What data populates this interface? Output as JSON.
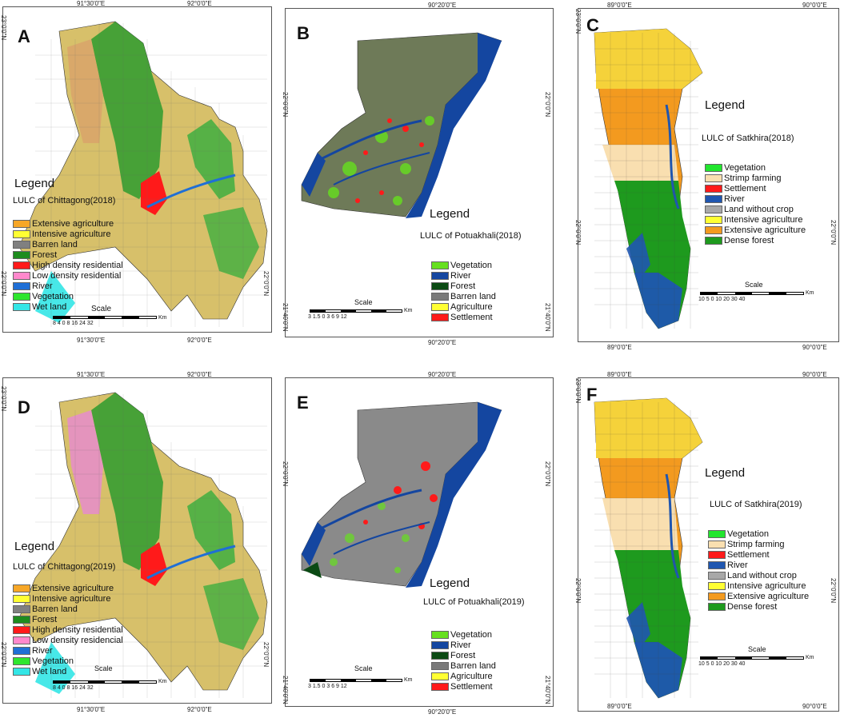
{
  "panels": {
    "A": {
      "letter": "A",
      "legend_title": "Legend",
      "subtitle": "LULC of Chittagong(2018)",
      "classes": [
        {
          "label": "Extensive agriculture",
          "color": "#f7a727"
        },
        {
          "label": "Intensive agriculture",
          "color": "#ffff33"
        },
        {
          "label": "Barren land",
          "color": "#808080"
        },
        {
          "label": "Forest",
          "color": "#1e8c1e"
        },
        {
          "label": "High density residential",
          "color": "#ff1a1a"
        },
        {
          "label": "Low density residential",
          "color": "#ff88cc"
        },
        {
          "label": "River",
          "color": "#1f6fd6"
        },
        {
          "label": "Vegetation",
          "color": "#2ee62e"
        },
        {
          "label": "Wet land",
          "color": "#33e6e6"
        }
      ],
      "scale_label": "Scale",
      "scale_ticks": "8  4  0       8      16     24     32",
      "scale_unit": "Km",
      "top_lon": [
        "91°30'0\"E",
        "92°0'0\"E"
      ],
      "bottom_lon": [
        "91°30'0\"E",
        "92°0'0\"E"
      ],
      "left_lat": [
        "23°0'0\"N",
        "22°0'0\"N"
      ],
      "right_lat": [
        "22°0'0\"N"
      ]
    },
    "B": {
      "letter": "B",
      "legend_title": "Legend",
      "subtitle": "LULC of Potuakhali(2018)",
      "classes": [
        {
          "label": "Vegetation",
          "color": "#66e01e"
        },
        {
          "label": "River",
          "color": "#1446a0"
        },
        {
          "label": "Forest",
          "color": "#0b4a14"
        },
        {
          "label": "Barren land",
          "color": "#7a7a7a"
        },
        {
          "label": "Agriculture",
          "color": "#ffff33"
        },
        {
          "label": "Settlement",
          "color": "#ff1a1a"
        }
      ],
      "scale_label": "Scale",
      "scale_ticks": "3  1.5  0       3       6       9      12",
      "scale_unit": "Km",
      "top_lon": [
        "90°20'0\"E"
      ],
      "bottom_lon": [
        "90°20'0\"E"
      ],
      "left_lat": [
        "22°0'0\"N",
        "21°40'0\"N"
      ],
      "right_lat": [
        "22°0'0\"N",
        "21°40'0\"N"
      ]
    },
    "C": {
      "letter": "C",
      "legend_title": "Legend",
      "subtitle": "LULC of Satkhira(2018)",
      "classes": [
        {
          "label": "Vegetation",
          "color": "#22e62e"
        },
        {
          "label": "Strimp farming",
          "color": "#f9dfb0"
        },
        {
          "label": "Settlement",
          "color": "#ff1a1a"
        },
        {
          "label": "River",
          "color": "#1f56b0"
        },
        {
          "label": "Land without crop",
          "color": "#a8a8a8"
        },
        {
          "label": "Intensive agriculture",
          "color": "#ffff33"
        },
        {
          "label": "Extensive agriculture",
          "color": "#f39a1f"
        },
        {
          "label": "Dense forest",
          "color": "#1e9a1e"
        }
      ],
      "scale_label": "Scale",
      "scale_ticks": "10  5   0       10      20      30      40",
      "scale_unit": "Km",
      "top_lon": [
        "89°0'0\"E",
        "90°0'0\"E"
      ],
      "bottom_lon": [
        "89°0'0\"E",
        "90°0'0\"E"
      ],
      "left_lat": [
        "23°0'0\"N",
        "22°0'0\"N"
      ],
      "right_lat": [
        "22°0'0\"N"
      ]
    },
    "D": {
      "letter": "D",
      "legend_title": "Legend",
      "subtitle": "LULC of Chittagong(2019)",
      "classes": [
        {
          "label": "Extensive agriculture",
          "color": "#f7a727"
        },
        {
          "label": "Intensive agriculture",
          "color": "#ffff33"
        },
        {
          "label": "Barren land",
          "color": "#808080"
        },
        {
          "label": "Forest",
          "color": "#1e8c1e"
        },
        {
          "label": "High density residential",
          "color": "#ff1a1a"
        },
        {
          "label": "Low density residencial",
          "color": "#ff88cc"
        },
        {
          "label": "River",
          "color": "#1f6fd6"
        },
        {
          "label": "Vegetation",
          "color": "#2ee62e"
        },
        {
          "label": "Wet land",
          "color": "#33e6e6"
        }
      ],
      "scale_label": "Scale",
      "scale_ticks": "8  4  0       8      16     24     32",
      "scale_unit": "Km",
      "top_lon": [
        "91°30'0\"E",
        "92°0'0\"E"
      ],
      "bottom_lon": [
        "91°30'0\"E",
        "92°0'0\"E"
      ],
      "left_lat": [
        "23°0'0\"N",
        "22°0'0\"N"
      ],
      "right_lat": [
        "22°0'0\"N"
      ]
    },
    "E": {
      "letter": "E",
      "legend_title": "Legend",
      "subtitle": "LULC of Potuakhali(2019)",
      "classes": [
        {
          "label": "Vegetation",
          "color": "#66e01e"
        },
        {
          "label": "River",
          "color": "#1446a0"
        },
        {
          "label": "Forest",
          "color": "#0b4a14"
        },
        {
          "label": "Barren land",
          "color": "#7a7a7a"
        },
        {
          "label": "Agriculture",
          "color": "#ffff33"
        },
        {
          "label": "Settlement",
          "color": "#ff1a1a"
        }
      ],
      "scale_label": "Scale",
      "scale_ticks": "3  1.5  0       3       6       9      12",
      "scale_unit": "Km",
      "top_lon": [
        "90°20'0\"E"
      ],
      "bottom_lon": [
        "90°20'0\"E"
      ],
      "left_lat": [
        "22°0'0\"N",
        "21°40'0\"N"
      ],
      "right_lat": [
        "22°0'0\"N",
        "21°40'0\"N"
      ]
    },
    "F": {
      "letter": "F",
      "legend_title": "Legend",
      "subtitle": "LULC of Satkhira(2019)",
      "classes": [
        {
          "label": "Vegetation",
          "color": "#22e62e"
        },
        {
          "label": "Strimp farming",
          "color": "#f9dfb0"
        },
        {
          "label": "Settlement",
          "color": "#ff1a1a"
        },
        {
          "label": "River",
          "color": "#1f56b0"
        },
        {
          "label": "Land without crop",
          "color": "#a8a8a8"
        },
        {
          "label": "Intensive agriculture",
          "color": "#ffff33"
        },
        {
          "label": "Extensive agriculture",
          "color": "#f39a1f"
        },
        {
          "label": "Dense forest",
          "color": "#1e9a1e"
        }
      ],
      "scale_label": "Scale",
      "scale_ticks": "10  5   0       10      20      30      40",
      "scale_unit": "Km",
      "top_lon": [
        "89°0'0\"E",
        "90°0'0\"E"
      ],
      "bottom_lon": [
        "89°0'0\"E",
        "90°0'0\"E"
      ],
      "left_lat": [
        "23°0'0\"N",
        "22°0'0\"N"
      ],
      "right_lat": [
        "22°0'0\"N"
      ]
    }
  }
}
